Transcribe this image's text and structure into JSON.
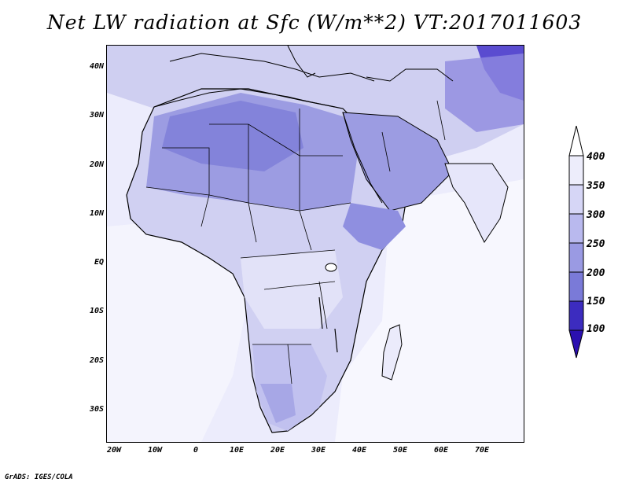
{
  "title": "Net LW radiation at Sfc (W/m**2) VT:2017011603",
  "footer": "GrADS: IGES/COLA",
  "lat_labels": [
    "40N",
    "30N",
    "20N",
    "10N",
    "EQ",
    "10S",
    "20S",
    "30S"
  ],
  "lon_labels": [
    "20W",
    "10W",
    "0",
    "10E",
    "20E",
    "30E",
    "40E",
    "50E",
    "60E",
    "70E"
  ],
  "colorbar": {
    "levels": [
      "400",
      "350",
      "300",
      "250",
      "200",
      "150",
      "100"
    ],
    "colors": [
      "#ededfb",
      "#d6d6f6",
      "#b9b9ee",
      "#9a9ae3",
      "#7a7ad8",
      "#5a5acc",
      "#3c2cbf",
      "#2b10b0"
    ]
  },
  "map": {
    "background_color": "#ececfc",
    "ocean_color": "#f4f4fd",
    "land_light": "#d0d0f2",
    "land_mid": "#b7b7ec",
    "land_dark": "#9c9ce2",
    "land_darker": "#8383da",
    "himalaya_color": "#5a4cd0"
  }
}
